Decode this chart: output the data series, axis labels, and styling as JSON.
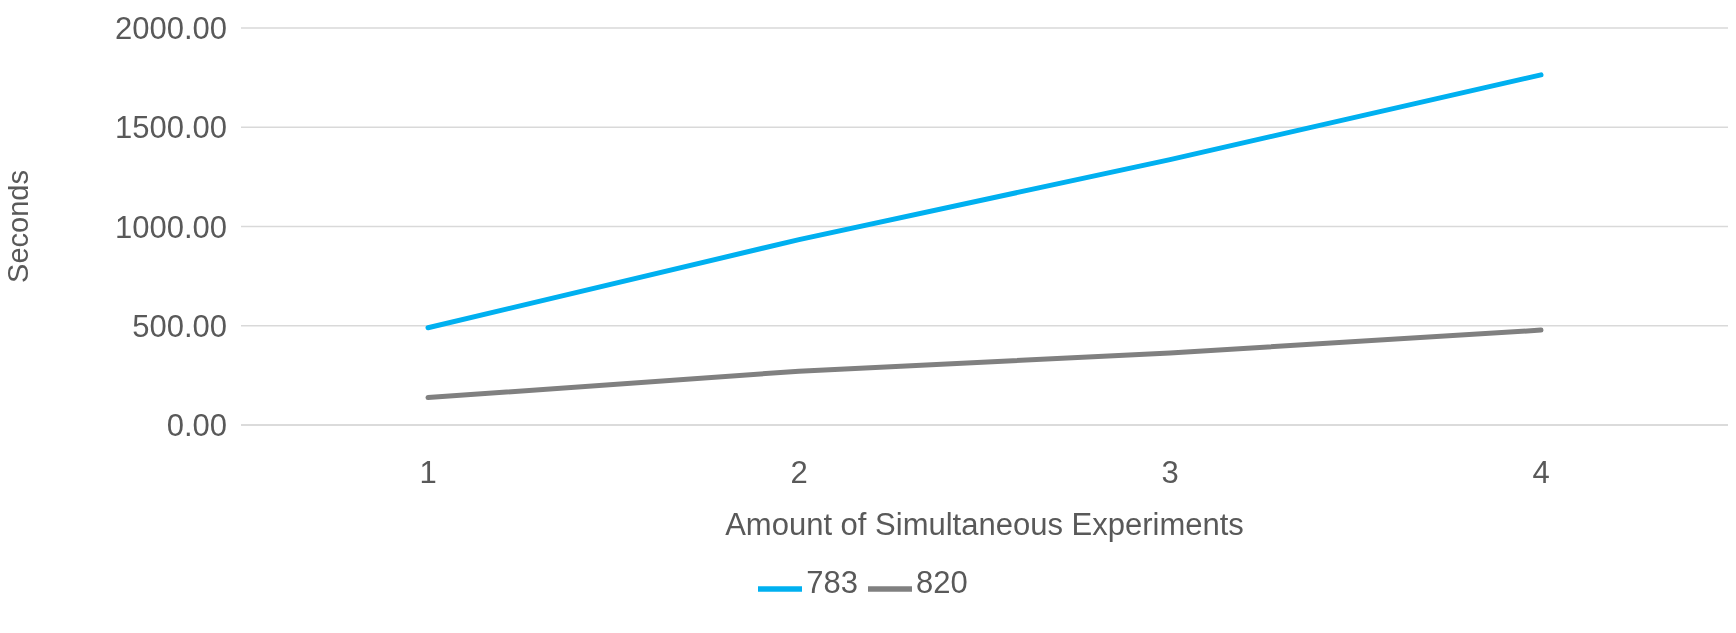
{
  "chart_data": {
    "type": "line",
    "xlabel": "Amount of Simultaneous Experiments",
    "ylabel": "Seconds",
    "categories": [
      "1",
      "2",
      "3",
      "4"
    ],
    "series": [
      {
        "name": "783",
        "color": "#00b0f0",
        "values": [
          490,
          934,
          1337,
          1764
        ]
      },
      {
        "name": "820",
        "color": "#808080",
        "values": [
          138,
          271,
          363,
          478
        ]
      }
    ],
    "ylim": [
      0,
      2000
    ],
    "yticks": [
      {
        "value": 0,
        "label": "0.00"
      },
      {
        "value": 500,
        "label": "500.00"
      },
      {
        "value": 1000,
        "label": "1000.00"
      },
      {
        "value": 1500,
        "label": "1500.00"
      },
      {
        "value": 2000,
        "label": "2000.00"
      }
    ],
    "grid": "y",
    "legend": "bottom"
  }
}
